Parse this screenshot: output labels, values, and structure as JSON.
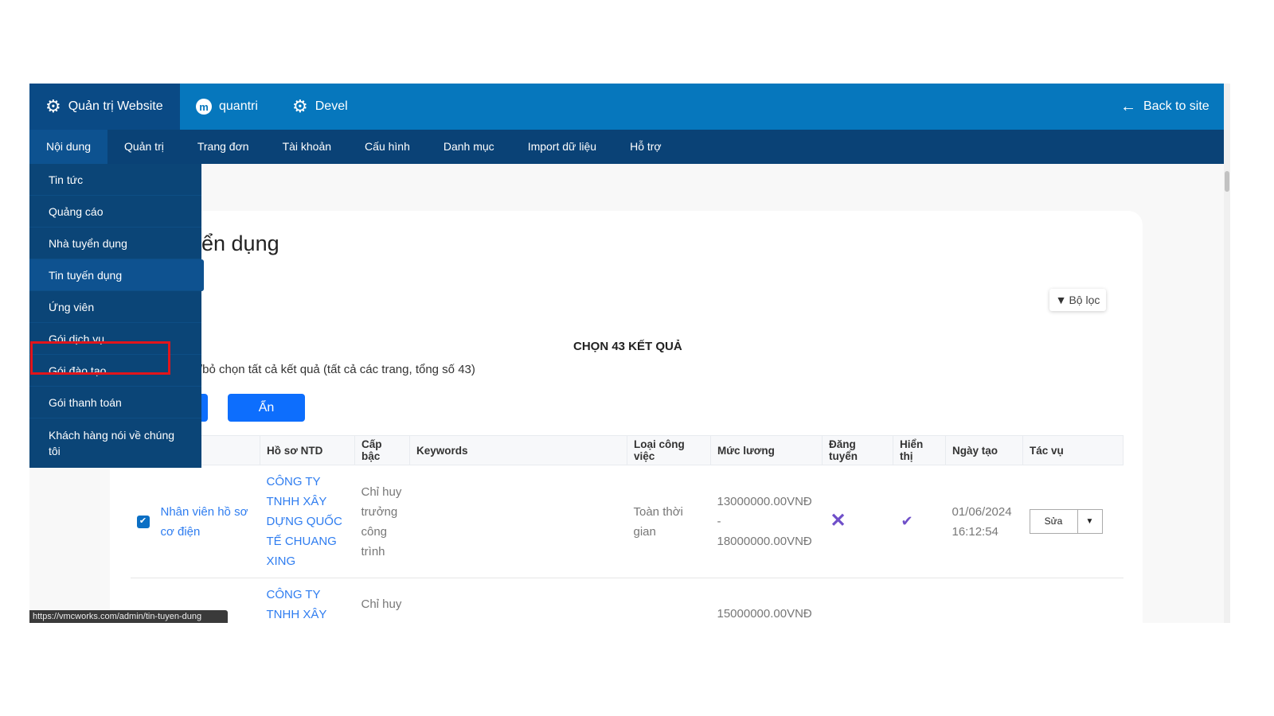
{
  "topbar": {
    "site_label": "Quản trị Website",
    "user_label": "quantri",
    "devel_label": "Devel",
    "back_label": "Back to site"
  },
  "nav": [
    "Nội dung",
    "Quản trị",
    "Trang đơn",
    "Tài khoản",
    "Cấu hình",
    "Danh mục",
    "Import dữ liệu",
    "Hỗ trợ"
  ],
  "menu": [
    "Tin tức",
    "Quảng cáo",
    "Nhà tuyển dụng",
    "Tin tuyến dụng",
    "Ứng viên",
    "Gói dịch vụ",
    "Gói đào tạo",
    "Gói thanh toán",
    "Khách hàng nói về chúng tôi"
  ],
  "page": {
    "title": "ển dụng",
    "filter_label": "Bộ lọc",
    "select_count": "CHỌN 43 KẾT QUẢ",
    "deselect_text": "/bỏ chọn tất cả kết quả (tất cả các trang, tổng số 43)",
    "hide_button": "Ẩn"
  },
  "table": {
    "headers": [
      "",
      "Hồ sơ NTD",
      "Cấp bậc",
      "Keywords",
      "Loại công việc",
      "Mức lương",
      "Đăng tuyển",
      "Hiển thị",
      "Ngày tạo",
      "Tác vụ"
    ],
    "rows": [
      {
        "checked": true,
        "title": "Nhân viên hồ sơ cơ điện",
        "company": "CÔNG TY TNHH XÂY DỰNG QUỐC TẾ CHUANG XING",
        "level": "Chỉ huy trưởng công trình",
        "keywords": "",
        "type": "Toàn thời gian",
        "salary": "13000000.00VNĐ - 18000000.00VNĐ",
        "posted": false,
        "visible": true,
        "created": "01/06/2024 16:12:54",
        "edit": "Sửa"
      },
      {
        "company": "CÔNG TY TNHH XÂY",
        "level": "Chỉ huy",
        "salary": "15000000.00VNĐ"
      }
    ]
  },
  "status_url": "https://vmcworks.com/admin/tin-tuyen-dung",
  "colors": {
    "topbar": "#0677bd",
    "nav": "#0a4276",
    "menu": "#0b4577",
    "primary": "#0d6efd",
    "highlight": "#e3151b",
    "status_icons": "#6f4fc9"
  }
}
